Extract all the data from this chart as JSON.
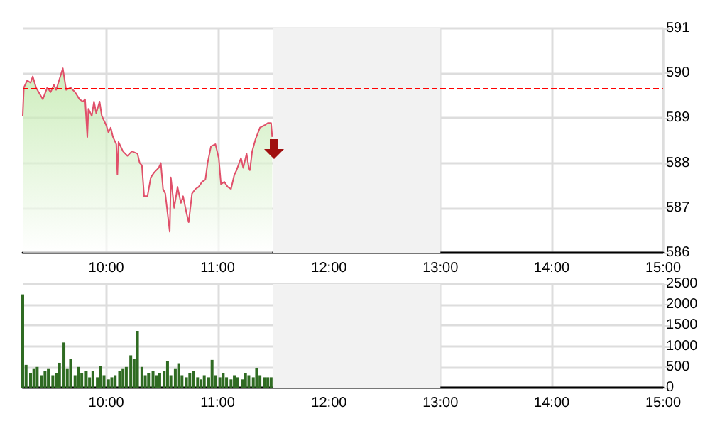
{
  "chart_data": [
    {
      "type": "area",
      "xlim": [
        9.25,
        15
      ],
      "xticks": [
        {
          "value": 10,
          "label": "10:00"
        },
        {
          "value": 11,
          "label": "11:00"
        },
        {
          "value": 12,
          "label": "12:00"
        },
        {
          "value": 13,
          "label": "13:00"
        },
        {
          "value": 14,
          "label": "14:00"
        },
        {
          "value": 15,
          "label": "15:00"
        }
      ],
      "ylim": [
        586,
        591
      ],
      "yticks": [
        586,
        587,
        588,
        589,
        590,
        591
      ],
      "grid": true,
      "series": [
        {
          "color": "#e0506a",
          "x": [
            9.25,
            9.26,
            9.29,
            9.32,
            9.34,
            9.37,
            9.43,
            9.47,
            9.5,
            9.53,
            9.55,
            9.57,
            9.61,
            9.64,
            9.68,
            9.72,
            9.76,
            9.79,
            9.81,
            9.83,
            9.84,
            9.87,
            9.89,
            9.91,
            9.94,
            9.96,
            10.0,
            10.02,
            10.04,
            10.06,
            10.09,
            10.1,
            10.11,
            10.15,
            10.19,
            10.23,
            10.28,
            10.3,
            10.32,
            10.34,
            10.37,
            10.4,
            10.43,
            10.47,
            10.49,
            10.51,
            10.53,
            10.57,
            10.58,
            10.61,
            10.64,
            10.67,
            10.69,
            10.72,
            10.74,
            10.77,
            10.8,
            10.83,
            10.86,
            10.89,
            10.91,
            10.94,
            10.98,
            11.01,
            11.03,
            11.06,
            11.09,
            11.12,
            11.15,
            11.17,
            11.21,
            11.23,
            11.26,
            11.28,
            11.29,
            11.31,
            11.34,
            11.38,
            11.42,
            11.45,
            11.48,
            11.49
          ],
          "values": [
            589.05,
            589.68,
            589.84,
            589.79,
            589.93,
            589.68,
            589.42,
            589.68,
            589.58,
            589.74,
            589.63,
            589.79,
            590.11,
            589.63,
            589.68,
            589.58,
            589.42,
            589.37,
            589.42,
            588.58,
            589.21,
            589.05,
            589.37,
            589.11,
            589.37,
            589.05,
            588.84,
            588.68,
            588.79,
            588.58,
            588.42,
            587.74,
            588.47,
            588.26,
            588.16,
            588.26,
            588.21,
            588.0,
            587.95,
            587.26,
            587.26,
            587.68,
            587.79,
            587.89,
            588.0,
            587.42,
            587.32,
            586.47,
            587.68,
            587.0,
            587.47,
            587.11,
            587.26,
            586.89,
            586.68,
            587.32,
            587.42,
            587.47,
            587.58,
            587.63,
            588.0,
            588.37,
            588.42,
            588.11,
            587.53,
            587.58,
            587.47,
            587.42,
            587.74,
            587.84,
            588.11,
            587.89,
            588.21,
            587.89,
            587.84,
            588.26,
            588.53,
            588.79,
            588.84,
            588.89,
            588.89,
            588.58
          ]
        }
      ],
      "ref_lines": [
        {
          "axis": "y",
          "value": 589.67,
          "color": "#ff0000",
          "line_style": "dashed"
        }
      ],
      "bands": [
        {
          "axis": "x",
          "from": 11.5,
          "to": 13,
          "color": "#f2f2f2"
        }
      ]
    },
    {
      "type": "bar",
      "xlim": [
        9.25,
        15
      ],
      "xticks": [
        {
          "value": 10,
          "label": "10:00"
        },
        {
          "value": 11,
          "label": "11:00"
        },
        {
          "value": 12,
          "label": "12:00"
        },
        {
          "value": 13,
          "label": "13:00"
        },
        {
          "value": 14,
          "label": "14:00"
        },
        {
          "value": 15,
          "label": "15:00"
        }
      ],
      "ylim": [
        0,
        2500
      ],
      "yticks": [
        0,
        500,
        1000,
        1500,
        2000,
        2500
      ],
      "grid": true,
      "series": [
        {
          "color": "#2f6b22",
          "x": [
            9.25,
            9.28,
            9.32,
            9.35,
            9.38,
            9.42,
            9.45,
            9.48,
            9.52,
            9.55,
            9.58,
            9.62,
            9.65,
            9.68,
            9.72,
            9.75,
            9.78,
            9.82,
            9.85,
            9.88,
            9.92,
            9.95,
            9.98,
            10.02,
            10.05,
            10.08,
            10.12,
            10.15,
            10.18,
            10.22,
            10.25,
            10.28,
            10.32,
            10.35,
            10.38,
            10.42,
            10.45,
            10.48,
            10.52,
            10.55,
            10.58,
            10.62,
            10.65,
            10.68,
            10.72,
            10.75,
            10.78,
            10.82,
            10.85,
            10.88,
            10.92,
            10.95,
            10.98,
            11.02,
            11.05,
            11.08,
            11.12,
            11.15,
            11.18,
            11.22,
            11.25,
            11.28,
            11.32,
            11.35,
            11.38,
            11.42,
            11.45,
            11.48
          ],
          "values": [
            2250,
            550,
            350,
            450,
            500,
            300,
            400,
            450,
            300,
            350,
            600,
            1090,
            450,
            700,
            300,
            500,
            350,
            400,
            250,
            400,
            250,
            530,
            300,
            200,
            250,
            300,
            400,
            450,
            500,
            780,
            700,
            1370,
            500,
            300,
            350,
            400,
            300,
            350,
            400,
            640,
            300,
            450,
            590,
            300,
            250,
            350,
            400,
            250,
            200,
            300,
            250,
            670,
            300,
            250,
            350,
            250,
            200,
            300,
            250,
            200,
            350,
            300,
            250,
            480,
            300,
            250,
            250,
            250
          ]
        }
      ],
      "bands": [
        {
          "axis": "x",
          "from": 11.5,
          "to": 13,
          "color": "#f2f2f2"
        }
      ]
    }
  ]
}
